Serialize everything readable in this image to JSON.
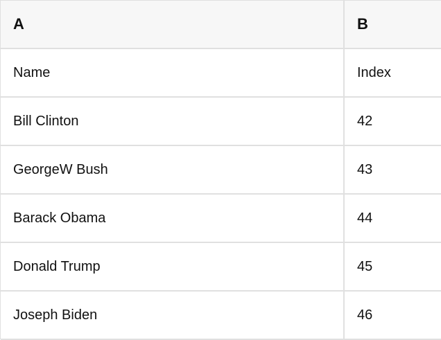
{
  "colors": {
    "header_bg": "#f7f7f7",
    "row_bg": "#ffffff",
    "grid_line": "#e0e0e0",
    "text": "#111111"
  },
  "table": {
    "header": {
      "col_a": "A",
      "col_b": "B"
    },
    "rows": [
      {
        "a": "Name",
        "b": "Index"
      },
      {
        "a": "Bill Clinton",
        "b": "42"
      },
      {
        "a": "GeorgeW Bush",
        "b": "43"
      },
      {
        "a": "Barack Obama",
        "b": "44"
      },
      {
        "a": "Donald Trump",
        "b": "45"
      },
      {
        "a": "Joseph Biden",
        "b": "46"
      }
    ]
  }
}
